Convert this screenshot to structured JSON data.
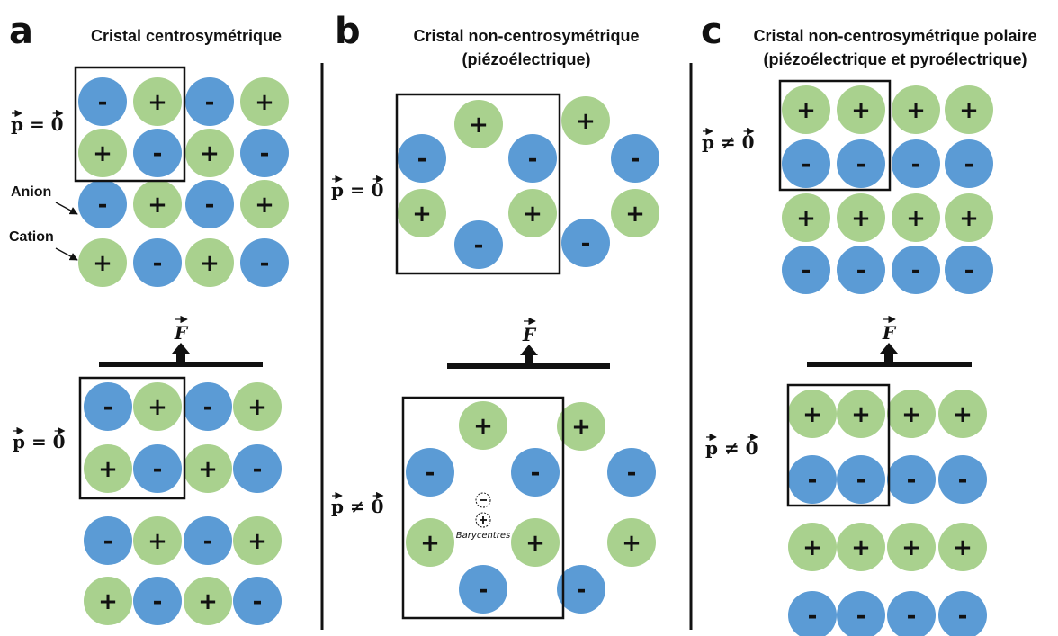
{
  "colors": {
    "anion": "#5b9bd5",
    "cation": "#a9d18e",
    "line": "#111111"
  },
  "signs": {
    "anion": "-",
    "cation": "+"
  },
  "labels": {
    "anion": "Anion",
    "cation": "Cation",
    "force": "F",
    "barycentres": "Barycentres"
  },
  "polarization": {
    "zero": "p = 0",
    "nonzero": "p ≠ 0"
  },
  "panels": [
    {
      "letter": "a",
      "title_lines": [
        "Cristal centrosymétrique"
      ]
    },
    {
      "letter": "b",
      "title_lines": [
        "Cristal non-centrosymétrique",
        "(piézoélectrique)"
      ]
    },
    {
      "letter": "c",
      "title_lines": [
        "Cristal non-centrosymétrique polaire",
        "(piézoélectrique et pyroélectrique)"
      ]
    }
  ]
}
